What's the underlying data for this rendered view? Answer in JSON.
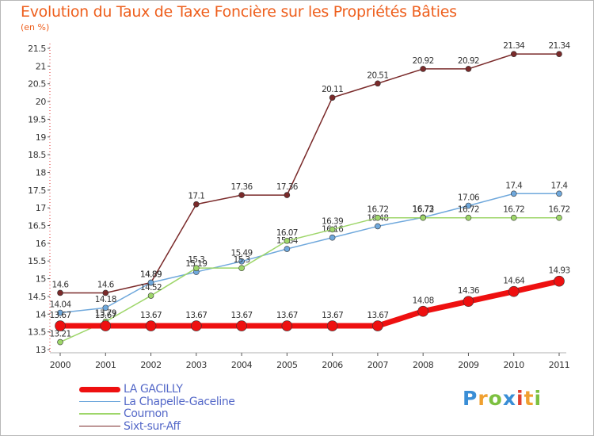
{
  "title": "Evolution du Taux de Taxe Foncière sur les Propriétés Bâties",
  "subtitle": "(en %)",
  "logo": {
    "letters": [
      "P",
      "r",
      "o",
      "x",
      "i",
      "t",
      "i"
    ],
    "colors": [
      "#3a8ed6",
      "#f0a030",
      "#7cc040",
      "#3a8ed6",
      "#e04030",
      "#f0a030",
      "#7cc040"
    ]
  },
  "chart_data": {
    "type": "line",
    "x": [
      "2000",
      "2001",
      "2002",
      "2003",
      "2004",
      "2005",
      "2006",
      "2007",
      "2008",
      "2009",
      "2010",
      "2011"
    ],
    "ylim": [
      13,
      21.5
    ],
    "yticks": [
      "13",
      "13.5",
      "14",
      "14.5",
      "15",
      "15.5",
      "16",
      "16.5",
      "17",
      "17.5",
      "18",
      "18.5",
      "19",
      "19.5",
      "20",
      "20.5",
      "21",
      "21.5"
    ],
    "grid": false,
    "legend_position": "bottom-left",
    "series": [
      {
        "name": "Sixt-sur-Aff",
        "color": "#7a2a2a",
        "width": 1.5,
        "marker": 3.5,
        "values": [
          14.6,
          14.6,
          14.89,
          17.1,
          17.36,
          17.36,
          20.11,
          20.51,
          20.92,
          20.92,
          21.34,
          21.34
        ],
        "labels": [
          "14.6",
          "14.6",
          "14.89",
          "17.1",
          "17.36",
          "17.36",
          "20.11",
          "20.51",
          "20.92",
          "20.92",
          "21.34",
          "21.34"
        ]
      },
      {
        "name": "La Chapelle-Gaceline",
        "color": "#6fa8dc",
        "width": 1.5,
        "marker": 3.5,
        "values": [
          14.04,
          14.18,
          14.89,
          15.19,
          15.49,
          15.84,
          16.16,
          16.48,
          16.73,
          17.06,
          17.4,
          17.4
        ],
        "labels": [
          "14.04",
          "14.18",
          "14.89",
          "15.19",
          "15.49",
          "15.84",
          "16.16",
          "16.48",
          "16.73",
          "17.06",
          "17.4",
          "17.4"
        ]
      },
      {
        "name": "Cournon",
        "color": "#9ed66a",
        "width": 1.5,
        "marker": 3.5,
        "values": [
          13.21,
          13.79,
          14.52,
          15.3,
          15.3,
          16.07,
          16.39,
          16.72,
          16.72,
          16.72,
          16.72,
          16.72
        ],
        "labels": [
          "13.21",
          "13.79",
          "14.52",
          "15.3",
          "15.3",
          "16.07",
          "16.39",
          "16.72",
          "16.72",
          "16.72",
          "16.72",
          "16.72"
        ]
      },
      {
        "name": "LA GACILLY",
        "color": "#ee1010",
        "width": 7,
        "marker": 6.5,
        "values": [
          13.67,
          13.67,
          13.67,
          13.67,
          13.67,
          13.67,
          13.67,
          13.67,
          14.08,
          14.36,
          14.64,
          14.93
        ],
        "labels": [
          "13.67",
          "13.67",
          "13.67",
          "13.67",
          "13.67",
          "13.67",
          "13.67",
          "13.67",
          "14.08",
          "14.36",
          "14.64",
          "14.93"
        ]
      }
    ]
  },
  "legend": [
    {
      "name": "LA GACILLY",
      "color": "#ee1010",
      "width": 7
    },
    {
      "name": "La Chapelle-Gaceline",
      "color": "#6fa8dc",
      "width": 1.5
    },
    {
      "name": "Cournon",
      "color": "#9ed66a",
      "width": 1.5
    },
    {
      "name": "Sixt-sur-Aff",
      "color": "#7a2a2a",
      "width": 1.5
    }
  ]
}
